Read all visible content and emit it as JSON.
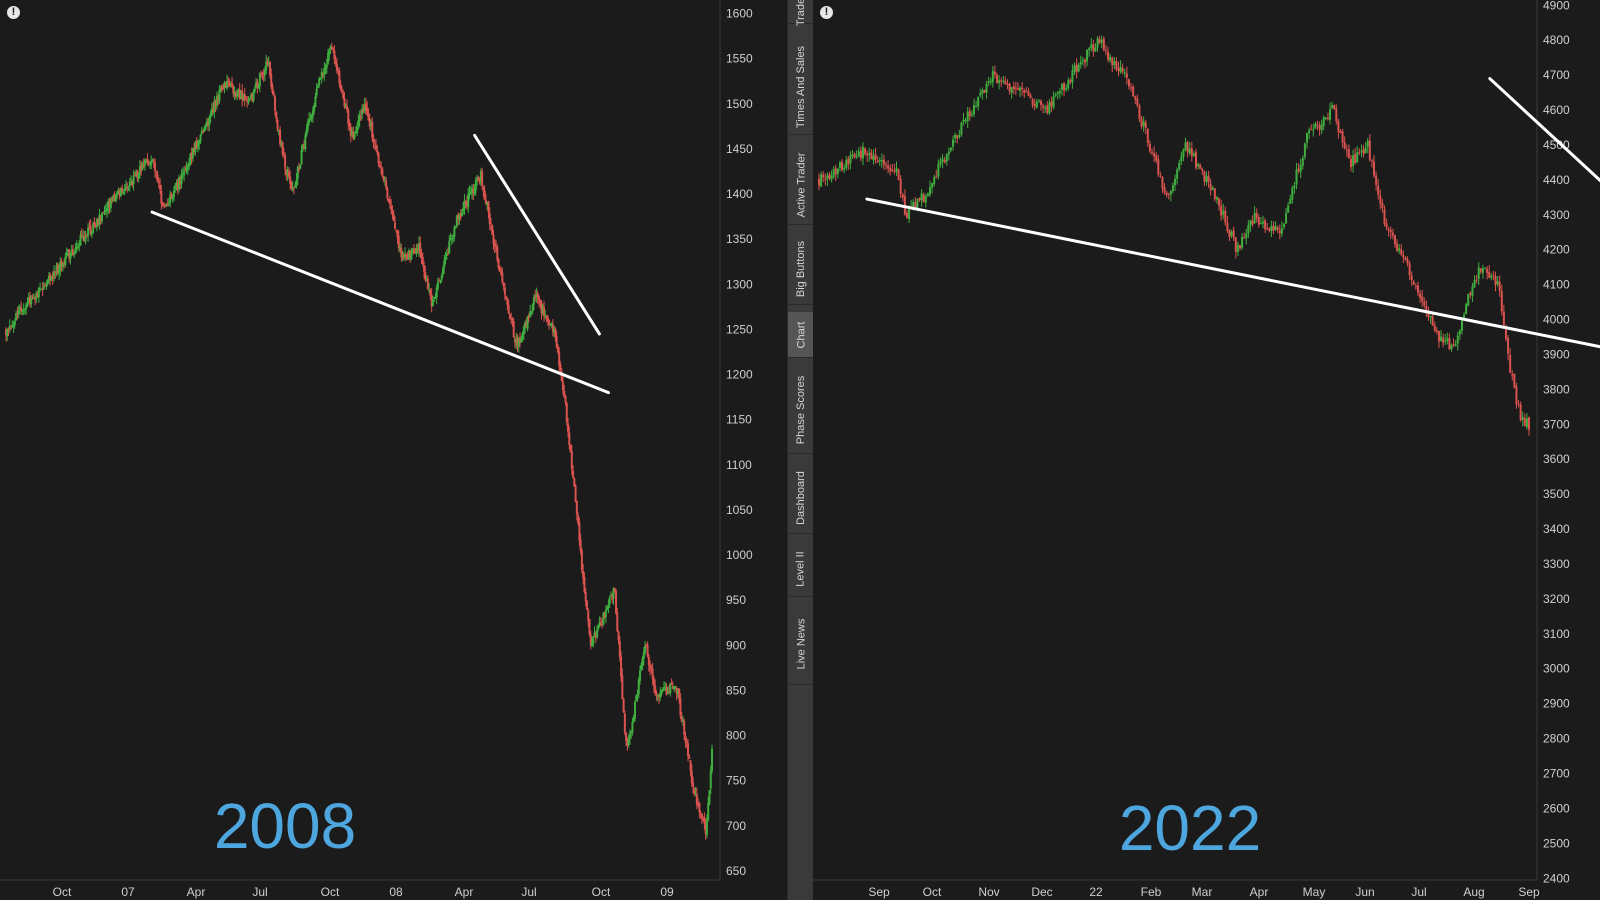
{
  "side_tabs": [
    {
      "label": "Trade",
      "active": false
    },
    {
      "label": "Times And Sales",
      "active": false
    },
    {
      "label": "Active Trader",
      "active": false
    },
    {
      "label": "Big Buttons",
      "active": false
    },
    {
      "label": "Chart",
      "active": true
    },
    {
      "label": "Phase Scores",
      "active": false
    },
    {
      "label": "Dashboard",
      "active": false
    },
    {
      "label": "Level II",
      "active": false
    },
    {
      "label": "Live News",
      "active": false
    }
  ],
  "colors": {
    "background": "#1b1b1b",
    "up": "#3fae3f",
    "down": "#d9534f",
    "trendline": "#ffffff",
    "year_label": "#4ea6df"
  },
  "alert_icon": "exclamation-circle-icon",
  "chart_data": [
    {
      "type": "candlestick",
      "overlay_label": "2008",
      "y_ticks": [
        650,
        700,
        750,
        800,
        850,
        900,
        950,
        1000,
        1050,
        1100,
        1150,
        1200,
        1250,
        1300,
        1350,
        1400,
        1450,
        1500,
        1550,
        1600
      ],
      "ylim": [
        640,
        1615
      ],
      "x_ticks": [
        "Oct",
        "07",
        "Apr",
        "Jul",
        "Oct",
        "08",
        "Apr",
        "Jul",
        "Oct",
        "09"
      ],
      "price_path": [
        {
          "t": 0,
          "p": 1250
        },
        {
          "t": 1.8,
          "p": 1395
        },
        {
          "t": 2.4,
          "p": 1440
        },
        {
          "t": 2.6,
          "p": 1380
        },
        {
          "t": 3.0,
          "p": 1435
        },
        {
          "t": 3.6,
          "p": 1525
        },
        {
          "t": 4.0,
          "p": 1500
        },
        {
          "t": 4.3,
          "p": 1548
        },
        {
          "t": 4.5,
          "p": 1460
        },
        {
          "t": 4.7,
          "p": 1400
        },
        {
          "t": 5.1,
          "p": 1515
        },
        {
          "t": 5.35,
          "p": 1565
        },
        {
          "t": 5.7,
          "p": 1460
        },
        {
          "t": 5.9,
          "p": 1500
        },
        {
          "t": 6.3,
          "p": 1390
        },
        {
          "t": 6.5,
          "p": 1330
        },
        {
          "t": 6.8,
          "p": 1340
        },
        {
          "t": 7.0,
          "p": 1275
        },
        {
          "t": 7.4,
          "p": 1370
        },
        {
          "t": 7.8,
          "p": 1420
        },
        {
          "t": 8.1,
          "p": 1320
        },
        {
          "t": 8.4,
          "p": 1230
        },
        {
          "t": 8.7,
          "p": 1285
        },
        {
          "t": 9.0,
          "p": 1250
        },
        {
          "t": 9.2,
          "p": 1160
        },
        {
          "t": 9.6,
          "p": 900
        },
        {
          "t": 10.0,
          "p": 960
        },
        {
          "t": 10.2,
          "p": 780
        },
        {
          "t": 10.5,
          "p": 900
        },
        {
          "t": 10.7,
          "p": 840
        },
        {
          "t": 11.0,
          "p": 860
        },
        {
          "t": 11.3,
          "p": 740
        },
        {
          "t": 11.5,
          "p": 690
        },
        {
          "t": 11.6,
          "p": 780
        }
      ],
      "trendlines": [
        {
          "from": {
            "t": 2.4,
            "p": 1380
          },
          "to": {
            "t": 9.9,
            "p": 1180
          }
        },
        {
          "from": {
            "t": 7.7,
            "p": 1465
          },
          "to": {
            "t": 9.75,
            "p": 1245
          }
        }
      ]
    },
    {
      "type": "candlestick",
      "overlay_label": "2022",
      "y_ticks": [
        2400,
        2500,
        2600,
        2700,
        2800,
        2900,
        3000,
        3100,
        3200,
        3300,
        3400,
        3500,
        3600,
        3700,
        3800,
        3900,
        4000,
        4100,
        4200,
        4300,
        4400,
        4500,
        4600,
        4700,
        4800,
        4900
      ],
      "ylim": [
        2395,
        4915
      ],
      "x_ticks": [
        "Sep",
        "Oct",
        "Nov",
        "Dec",
        "22",
        "Feb",
        "Mar",
        "Apr",
        "May",
        "Jun",
        "Jul",
        "Aug",
        "Sep"
      ],
      "price_path": [
        {
          "t": 0,
          "p": 4400
        },
        {
          "t": 0.5,
          "p": 4480
        },
        {
          "t": 0.9,
          "p": 4420
        },
        {
          "t": 1.0,
          "p": 4300
        },
        {
          "t": 1.2,
          "p": 4350
        },
        {
          "t": 1.6,
          "p": 4540
        },
        {
          "t": 2.0,
          "p": 4700
        },
        {
          "t": 2.6,
          "p": 4600
        },
        {
          "t": 2.9,
          "p": 4700
        },
        {
          "t": 3.2,
          "p": 4800
        },
        {
          "t": 3.5,
          "p": 4700
        },
        {
          "t": 3.7,
          "p": 4570
        },
        {
          "t": 4.0,
          "p": 4350
        },
        {
          "t": 4.2,
          "p": 4500
        },
        {
          "t": 4.5,
          "p": 4380
        },
        {
          "t": 4.8,
          "p": 4200
        },
        {
          "t": 5.0,
          "p": 4290
        },
        {
          "t": 5.3,
          "p": 4250
        },
        {
          "t": 5.6,
          "p": 4520
        },
        {
          "t": 5.9,
          "p": 4600
        },
        {
          "t": 6.1,
          "p": 4450
        },
        {
          "t": 6.3,
          "p": 4500
        },
        {
          "t": 6.5,
          "p": 4270
        },
        {
          "t": 6.8,
          "p": 4130
        },
        {
          "t": 7.1,
          "p": 3950
        },
        {
          "t": 7.3,
          "p": 3920
        },
        {
          "t": 7.5,
          "p": 4100
        },
        {
          "t": 7.6,
          "p": 4150
        },
        {
          "t": 7.8,
          "p": 4100
        },
        {
          "t": 7.9,
          "p": 3900
        },
        {
          "t": 8.05,
          "p": 3720
        },
        {
          "t": 8.15,
          "p": 3700
        }
      ],
      "trendlines": [
        {
          "from": {
            "t": 0.55,
            "p": 4345
          },
          "to": {
            "t": 11.0,
            "p": 3820
          }
        },
        {
          "from": {
            "t": 7.7,
            "p": 4690
          },
          "to": {
            "t": 11.0,
            "p": 3930
          }
        }
      ]
    }
  ]
}
